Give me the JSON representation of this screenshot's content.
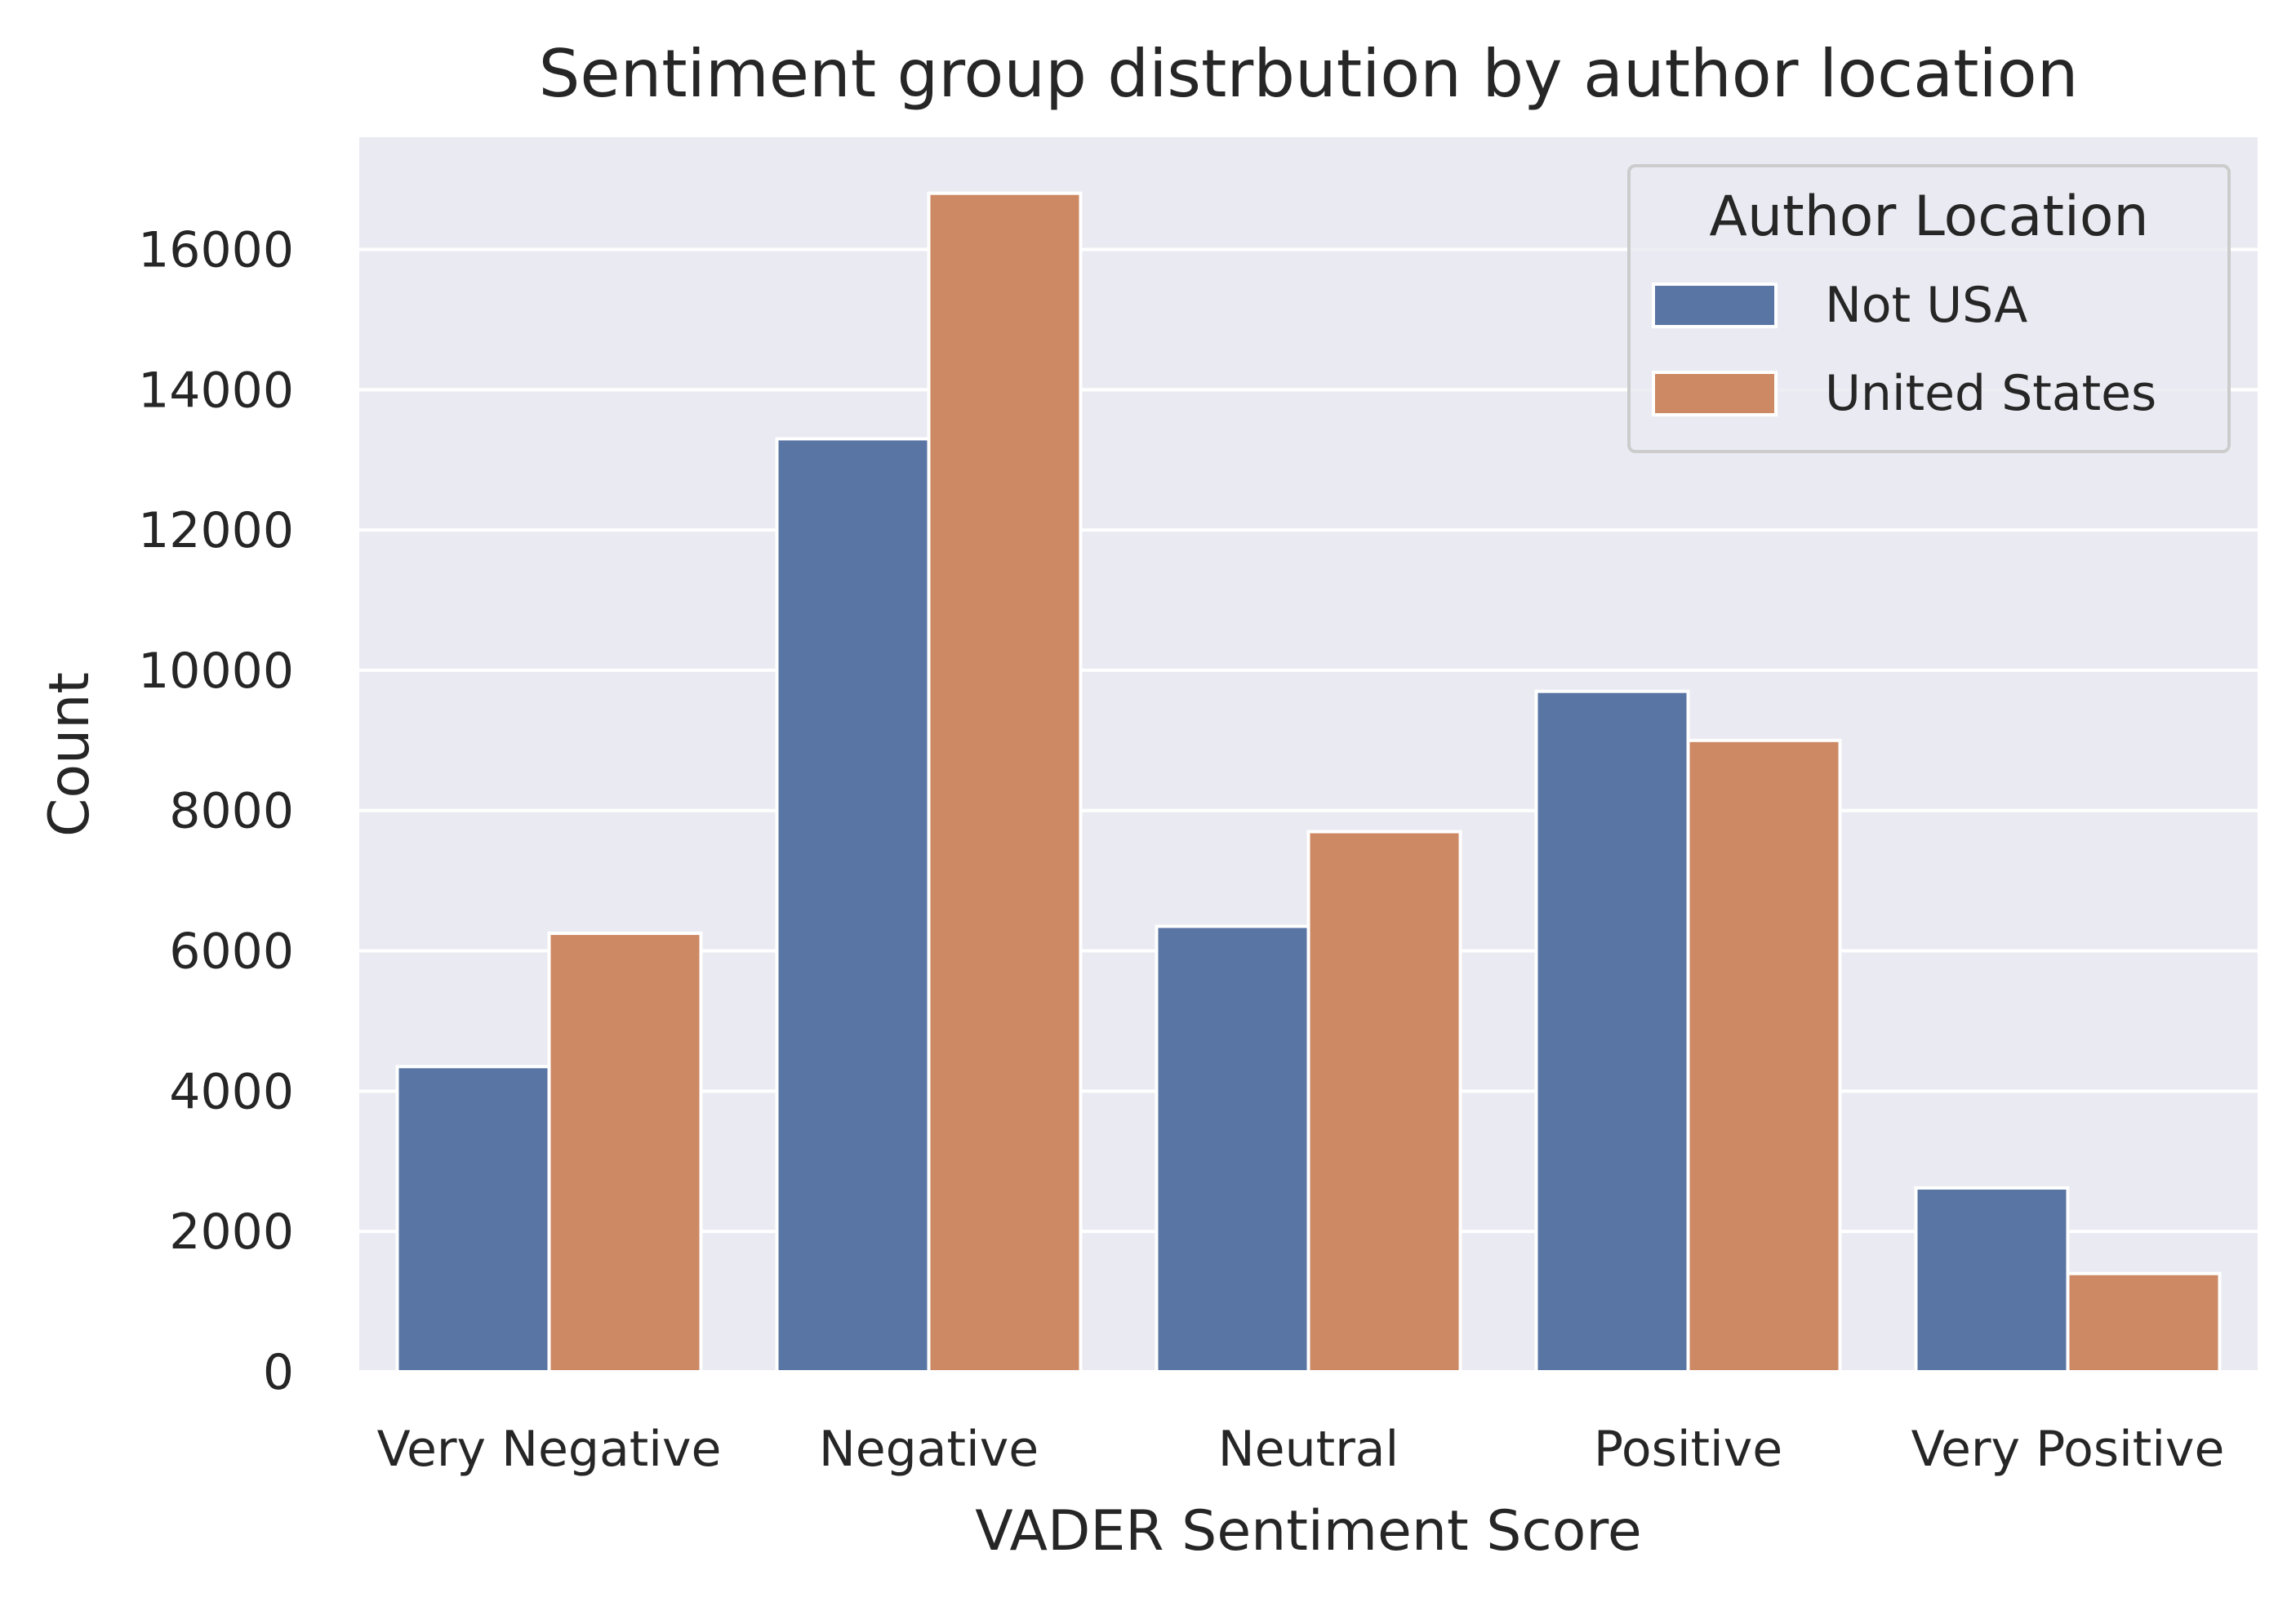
{
  "chart_data": {
    "type": "bar",
    "title": "Sentiment group distrbution by author location",
    "xlabel": "VADER Sentiment Score",
    "ylabel": "Count",
    "categories": [
      "Very Negative",
      "Negative",
      "Neutral",
      "Positive",
      "Very Positive"
    ],
    "series": [
      {
        "name": "Not USA",
        "color": "#5975a4",
        "values": [
          4350,
          13300,
          6350,
          9700,
          2620
        ]
      },
      {
        "name": "United States",
        "color": "#cc8963",
        "values": [
          6250,
          16800,
          7700,
          9000,
          1400
        ]
      }
    ],
    "ylim": [
      0,
      17600
    ],
    "yticks": [
      0,
      2000,
      4000,
      6000,
      8000,
      10000,
      12000,
      14000,
      16000
    ],
    "grid": true,
    "background_color": "#eaeaf2",
    "legend": {
      "title": "Author Location",
      "placement": "top-right"
    }
  }
}
